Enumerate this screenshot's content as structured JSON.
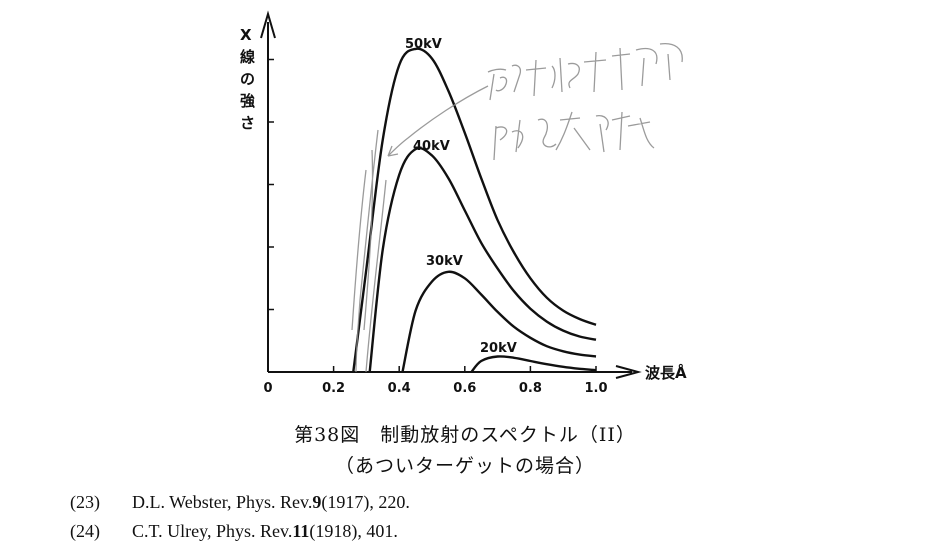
{
  "chart_data": {
    "type": "line",
    "ylabel": "X線の強さ",
    "xlabel": "波長Å",
    "x_ticks": [
      "0",
      "0.2",
      "0.4",
      "0.6",
      "0.8",
      "1.0"
    ],
    "xlim": [
      0,
      1.0
    ],
    "ylim": [
      0,
      5.2
    ],
    "y_ticks_labeled": false,
    "grid": false,
    "series": [
      {
        "name": "50kV",
        "x": [
          0.26,
          0.3,
          0.35,
          0.4,
          0.45,
          0.5,
          0.55,
          0.6,
          0.65,
          0.7,
          0.75,
          0.8,
          0.85,
          0.9,
          0.95,
          1.0
        ],
        "y": [
          0.0,
          1.6,
          3.6,
          4.75,
          5.0,
          4.85,
          4.35,
          3.7,
          3.0,
          2.35,
          1.85,
          1.45,
          1.15,
          0.95,
          0.82,
          0.73
        ]
      },
      {
        "name": "40kV",
        "x": [
          0.31,
          0.35,
          0.4,
          0.45,
          0.5,
          0.55,
          0.6,
          0.65,
          0.7,
          0.75,
          0.8,
          0.85,
          0.9,
          0.95,
          1.0
        ],
        "y": [
          0.0,
          1.9,
          3.05,
          3.45,
          3.35,
          3.0,
          2.5,
          2.0,
          1.6,
          1.25,
          0.98,
          0.78,
          0.64,
          0.55,
          0.5
        ]
      },
      {
        "name": "30kV",
        "x": [
          0.41,
          0.45,
          0.5,
          0.55,
          0.6,
          0.65,
          0.7,
          0.75,
          0.8,
          0.85,
          0.9,
          0.95,
          1.0
        ],
        "y": [
          0.0,
          0.95,
          1.4,
          1.55,
          1.45,
          1.2,
          0.93,
          0.7,
          0.53,
          0.4,
          0.32,
          0.27,
          0.24
        ]
      },
      {
        "name": "20kV",
        "x": [
          0.62,
          0.65,
          0.7,
          0.75,
          0.8,
          0.85,
          0.9,
          0.95,
          1.0
        ],
        "y": [
          0.0,
          0.17,
          0.24,
          0.22,
          0.17,
          0.12,
          0.08,
          0.05,
          0.03
        ]
      }
    ],
    "annotations": [
      "50kV",
      "40kV",
      "30kV",
      "20kV"
    ]
  },
  "handwriting_note": [
    "厚子物理学本論",
    "P4に参照"
  ],
  "caption": {
    "line1": "第38図　制動放射のスペクトル（II）",
    "line2": "（あついターゲットの場合）"
  },
  "references": [
    {
      "num": "(23)",
      "text": "D.L. Webster, Phys. Rev. ",
      "vol": "9",
      "rest": " (1917), 220."
    },
    {
      "num": "(24)",
      "text": "C.T. Ulrey, Phys. Rev. ",
      "vol": "11",
      "rest": " (1918), 401."
    }
  ]
}
